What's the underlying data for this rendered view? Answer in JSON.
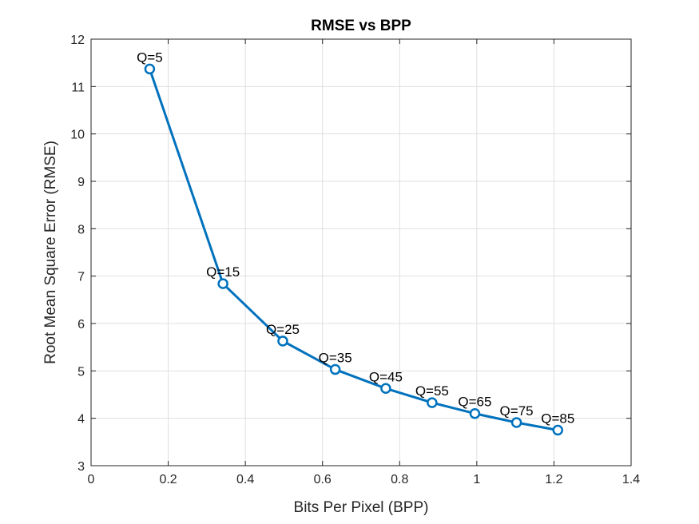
{
  "chart_data": {
    "type": "line",
    "title": "RMSE vs BPP",
    "xlabel": "Bits Per Pixel (BPP)",
    "ylabel": "Root Mean Square Error (RMSE)",
    "xlim": [
      0,
      1.4
    ],
    "ylim": [
      3,
      12
    ],
    "xticks": [
      "0",
      "0.2",
      "0.4",
      "0.6",
      "0.8",
      "1",
      "1.2",
      "1.4"
    ],
    "xtick_values": [
      0,
      0.2,
      0.4,
      0.6,
      0.8,
      1.0,
      1.2,
      1.4
    ],
    "yticks": [
      "3",
      "4",
      "5",
      "6",
      "7",
      "8",
      "9",
      "10",
      "11",
      "12"
    ],
    "ytick_values": [
      3,
      4,
      5,
      6,
      7,
      8,
      9,
      10,
      11,
      12
    ],
    "grid": true,
    "marker": "circle",
    "color": "#0072BD",
    "series": [
      {
        "x": [
          0.152,
          0.342,
          0.497,
          0.633,
          0.764,
          0.884,
          0.995,
          1.103,
          1.21
        ],
        "y": [
          11.37,
          6.84,
          5.63,
          5.03,
          4.63,
          4.33,
          4.1,
          3.91,
          3.75
        ],
        "labels": [
          "Q=5",
          "Q=15",
          "Q=25",
          "Q=35",
          "Q=45",
          "Q=55",
          "Q=65",
          "Q=75",
          "Q=85"
        ]
      }
    ]
  }
}
